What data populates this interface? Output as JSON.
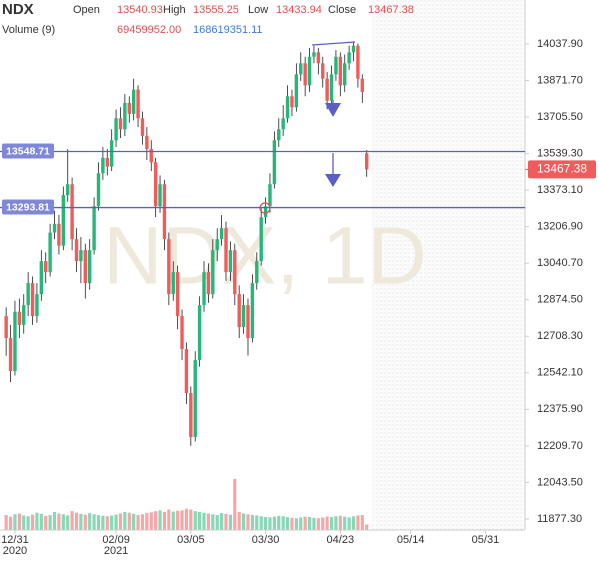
{
  "chart_data": {
    "type": "candlestick",
    "header": {
      "symbol": "NDX",
      "ohlc": [
        {
          "label": "Open",
          "value": "13540.93"
        },
        {
          "label": "High",
          "value": "13555.25"
        },
        {
          "label": "Low",
          "value": "13433.94"
        },
        {
          "label": "Close",
          "value": "13467.38"
        }
      ],
      "volume_label": "Volume (9)",
      "volume_values": [
        {
          "value": "69459952.00",
          "color": "#e05050"
        },
        {
          "value": "168619351.11",
          "color": "#3b7dd8"
        }
      ],
      "value_color": "#e05050"
    },
    "watermark": "NDX, 1D",
    "up_color": "#26b67a",
    "down_color": "#f05c5c",
    "open": [
      12800,
      12700,
      12550,
      12820,
      12760,
      12850,
      12950,
      12800,
      12900,
      13050,
      13000,
      13180,
      13220,
      13120,
      13350,
      13400,
      13150,
      13050,
      13100,
      12950,
      13100,
      13300,
      13450,
      13520,
      13480,
      13600,
      13700,
      13650,
      13770,
      13720,
      13830,
      13700,
      13620,
      13560,
      13500,
      13300,
      13400,
      13150,
      12900,
      13000,
      12800,
      12650,
      12450,
      12250,
      12600,
      12850,
      13000,
      12900,
      13100,
      13150,
      13200,
      13000,
      13100,
      12900,
      12750,
      12850,
      12700,
      12950,
      13050,
      13250,
      13300,
      13400,
      13600,
      13650,
      13700,
      13800,
      13750,
      13900,
      13950,
      13850,
      13980,
      14000,
      13950,
      13880,
      13780,
      13900,
      13980,
      13850,
      13950,
      14000,
      14030,
      13880,
      13540.93
    ],
    "high": [
      12840,
      12760,
      12870,
      12880,
      12900,
      13000,
      12980,
      12950,
      13100,
      13090,
      13220,
      13280,
      13260,
      13390,
      13560,
      13430,
      13200,
      13160,
      13130,
      13150,
      13340,
      13500,
      13570,
      13560,
      13650,
      13740,
      13750,
      13810,
      13800,
      13880,
      13850,
      13730,
      13660,
      13600,
      13520,
      13440,
      13420,
      13180,
      13050,
      13030,
      12830,
      12680,
      12480,
      12640,
      12890,
      13050,
      13040,
      13150,
      13200,
      13260,
      13230,
      13140,
      13130,
      12940,
      12900,
      12880,
      12990,
      13090,
      13290,
      13340,
      13450,
      13640,
      13700,
      13760,
      13850,
      13830,
      13950,
      14000,
      13980,
      14020,
      14030,
      14020,
      13980,
      13910,
      13940,
      14010,
      14000,
      13990,
      14030,
      14050,
      14040,
      13900,
      13555.25
    ],
    "low": [
      12620,
      12500,
      12530,
      12700,
      12720,
      12800,
      12760,
      12770,
      12870,
      12950,
      12980,
      13150,
      13080,
      13100,
      13320,
      13100,
      13000,
      12950,
      12880,
      12920,
      13080,
      13280,
      13420,
      13440,
      13460,
      13570,
      13610,
      13620,
      13680,
      13690,
      13660,
      13580,
      13510,
      13460,
      13250,
      13270,
      13100,
      12850,
      12870,
      12740,
      12600,
      12400,
      12210,
      12230,
      12570,
      12820,
      12860,
      12880,
      13050,
      13120,
      12960,
      12960,
      12850,
      12700,
      12720,
      12620,
      12680,
      12920,
      13030,
      13220,
      13270,
      13380,
      13570,
      13620,
      13680,
      13710,
      13730,
      13870,
      13800,
      13820,
      13950,
      13900,
      13840,
      13740,
      13760,
      13870,
      13800,
      13820,
      13920,
      13960,
      13840,
      13770,
      13433.94
    ],
    "close": [
      12700,
      12550,
      12820,
      12760,
      12850,
      12950,
      12800,
      12900,
      13050,
      13000,
      13180,
      13220,
      13120,
      13350,
      13400,
      13150,
      13050,
      13100,
      12950,
      13100,
      13300,
      13450,
      13520,
      13480,
      13600,
      13700,
      13650,
      13770,
      13720,
      13830,
      13700,
      13620,
      13560,
      13500,
      13300,
      13400,
      13150,
      12900,
      13000,
      12800,
      12650,
      12450,
      12250,
      12600,
      12850,
      13000,
      12900,
      13100,
      13150,
      13200,
      13000,
      13100,
      12900,
      12750,
      12850,
      12700,
      12950,
      13050,
      13250,
      13300,
      13400,
      13600,
      13650,
      13700,
      13800,
      13750,
      13900,
      13950,
      13850,
      13980,
      14000,
      13950,
      13880,
      13780,
      13900,
      13980,
      13850,
      13950,
      14000,
      14030,
      13880,
      13820,
      13467.38
    ],
    "volume": [
      190000000,
      170000000,
      200000000,
      210000000,
      185000000,
      175000000,
      195000000,
      220000000,
      205000000,
      180000000,
      190000000,
      230000000,
      210000000,
      200000000,
      185000000,
      240000000,
      220000000,
      205000000,
      195000000,
      215000000,
      200000000,
      190000000,
      180000000,
      175000000,
      185000000,
      195000000,
      210000000,
      230000000,
      220000000,
      205000000,
      190000000,
      200000000,
      215000000,
      225000000,
      240000000,
      250000000,
      230000000,
      260000000,
      235000000,
      245000000,
      250000000,
      270000000,
      260000000,
      240000000,
      230000000,
      220000000,
      210000000,
      200000000,
      190000000,
      215000000,
      205000000,
      195000000,
      650000000,
      230000000,
      210000000,
      200000000,
      190000000,
      185000000,
      175000000,
      165000000,
      160000000,
      170000000,
      180000000,
      175000000,
      165000000,
      155000000,
      150000000,
      160000000,
      170000000,
      165000000,
      155000000,
      150000000,
      160000000,
      170000000,
      165000000,
      175000000,
      180000000,
      170000000,
      160000000,
      175000000,
      185000000,
      190000000,
      69459952
    ],
    "volume_lim": [
      0,
      700000000
    ],
    "ylim": [
      11827,
      14238
    ],
    "yticks": [
      {
        "value": 14037.9,
        "label": "14037.90"
      },
      {
        "value": 13871.7,
        "label": "13871.70"
      },
      {
        "value": 13705.5,
        "label": "13705.50"
      },
      {
        "value": 13539.3,
        "label": "13539.30"
      },
      {
        "value": 13373.1,
        "label": "13373.10"
      },
      {
        "value": 13206.9,
        "label": "13206.90"
      },
      {
        "value": 13040.7,
        "label": "13040.70"
      },
      {
        "value": 12874.5,
        "label": "12874.50"
      },
      {
        "value": 12708.3,
        "label": "12708.30"
      },
      {
        "value": 12542.1,
        "label": "12542.10"
      },
      {
        "value": 12375.9,
        "label": "12375.90"
      },
      {
        "value": 12209.7,
        "label": "12209.70"
      },
      {
        "value": 12043.5,
        "label": "12043.50"
      },
      {
        "value": 11877.3,
        "label": "11877.30"
      }
    ],
    "xlim": [
      -1.4,
      118
    ],
    "xticks": [
      {
        "value": 2,
        "label": "12/31",
        "year": "2020"
      },
      {
        "value": 25,
        "label": "02/09",
        "year": "2021"
      },
      {
        "value": 42,
        "label": "03/05"
      },
      {
        "value": 59,
        "label": "03/30"
      },
      {
        "value": 76,
        "label": "04/23"
      },
      {
        "value": 92,
        "label": "05/14"
      },
      {
        "value": 109,
        "label": "05/31"
      }
    ],
    "price_lines": [
      {
        "value": 13548.71,
        "color": "#5a5fc8"
      },
      {
        "value": 13293.81,
        "color": "#5a5fc8"
      }
    ],
    "last_price": 13467.38
  }
}
